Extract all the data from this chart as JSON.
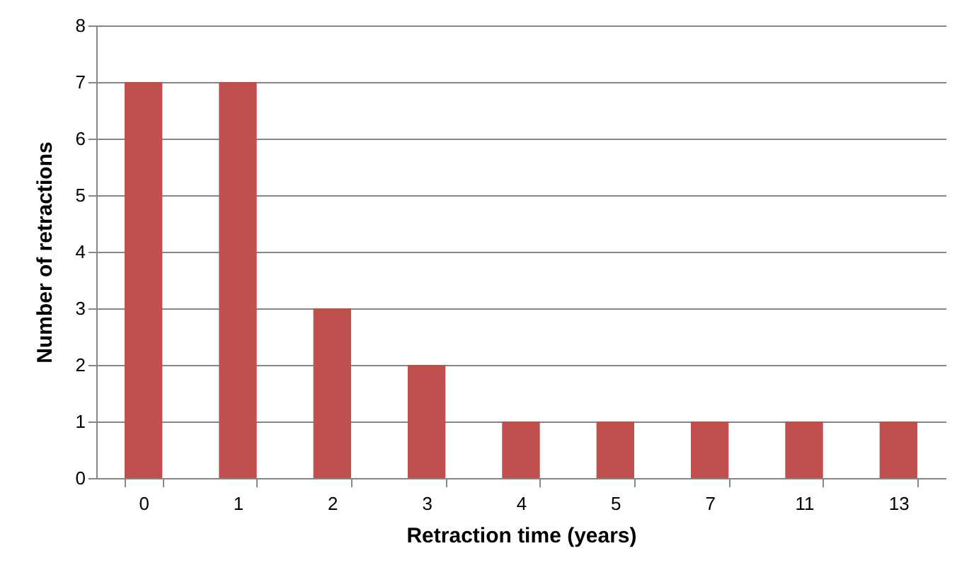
{
  "chart_data": {
    "type": "bar",
    "xlabel": "Retraction time (years)",
    "ylabel": "Number of retractions",
    "categories": [
      "0",
      "1",
      "2",
      "3",
      "4",
      "5",
      "7",
      "11",
      "13"
    ],
    "values": [
      7,
      7,
      3,
      2,
      1,
      1,
      1,
      1,
      1
    ],
    "color": "#c0504d",
    "ylim": [
      0,
      8
    ],
    "yticks": [
      0,
      1,
      2,
      3,
      4,
      5,
      6,
      7,
      8
    ],
    "grid": "y"
  }
}
